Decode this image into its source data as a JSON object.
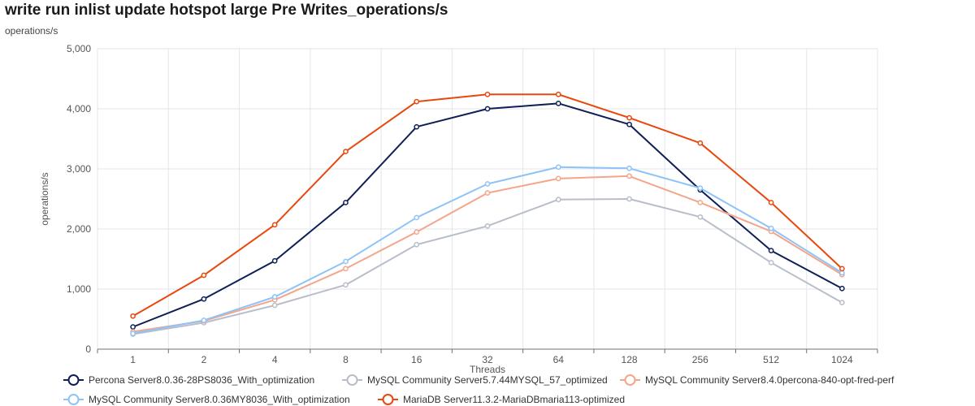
{
  "header": {
    "title": "write run inlist update hotspot large Pre Writes_operations/s",
    "subtitle": "operations/s"
  },
  "chart_data": {
    "type": "line",
    "title": "write run inlist update hotspot large Pre Writes_operations/s",
    "xlabel": "Threads",
    "ylabel": "operations/s",
    "categories": [
      "1",
      "2",
      "4",
      "8",
      "16",
      "32",
      "64",
      "128",
      "256",
      "512",
      "1024"
    ],
    "ylim": [
      0,
      5000
    ],
    "yticks": [
      0,
      1000,
      2000,
      3000,
      4000,
      5000
    ],
    "ytick_labels": [
      "0",
      "1,000",
      "2,000",
      "3,000",
      "4,000",
      "5,000"
    ],
    "grid": true,
    "legend_position": "bottom",
    "series": [
      {
        "name": "Percona Server8.0.36-28PS8036_With_optimization",
        "color": "#0f1f55",
        "values": [
          370,
          835,
          1470,
          2440,
          3700,
          4000,
          4090,
          3740,
          2650,
          1640,
          1010
        ]
      },
      {
        "name": "MySQL Community Server5.7.44MYSQL_57_optimized",
        "color": "#b8bec9",
        "values": [
          250,
          440,
          730,
          1070,
          1740,
          2050,
          2490,
          2500,
          2200,
          1440,
          775
        ]
      },
      {
        "name": "MySQL Community Server8.4.0percona-840-opt-fred-perf",
        "color": "#f4a58a",
        "values": [
          290,
          470,
          820,
          1340,
          1950,
          2600,
          2840,
          2880,
          2440,
          1960,
          1240
        ]
      },
      {
        "name": "MySQL Community Server8.0.36MY8036_With_optimization",
        "color": "#8ec3f7",
        "values": [
          260,
          480,
          870,
          1460,
          2190,
          2750,
          3030,
          3010,
          2680,
          2010,
          1270
        ]
      },
      {
        "name": "MariaDB Server11.3.2-MariaDBmaria113-optimized",
        "color": "#e8480c",
        "values": [
          550,
          1230,
          2070,
          3290,
          4120,
          4240,
          4240,
          3850,
          3430,
          2440,
          1340
        ]
      }
    ]
  }
}
